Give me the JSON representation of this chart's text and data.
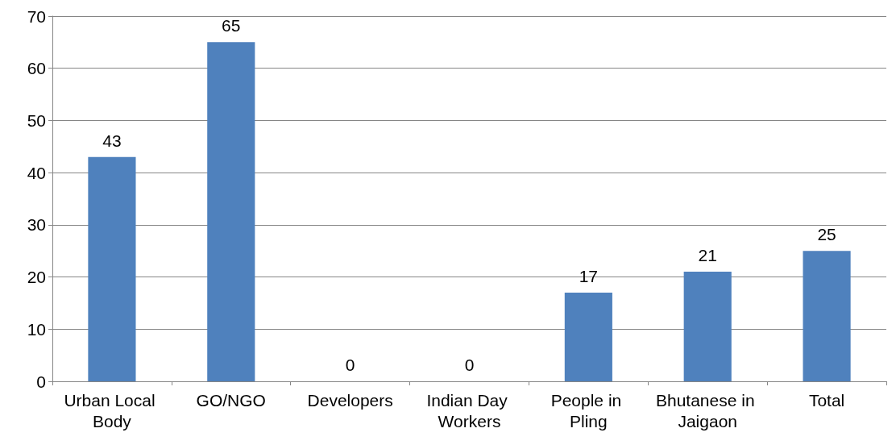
{
  "chart_data": {
    "type": "bar",
    "categories": [
      "Urban Local Body",
      "GO/NGO",
      "Developers",
      "Indian Day Workers",
      "People in Pling",
      "Bhutanese in Jaigaon",
      "Total"
    ],
    "values": [
      43,
      65,
      0,
      0,
      17,
      21,
      25
    ],
    "color": "#4f81bd",
    "ylim": [
      0,
      70
    ],
    "yticks": [
      0,
      10,
      20,
      30,
      40,
      50,
      60,
      70
    ],
    "grid": "y",
    "data_labels": true
  }
}
